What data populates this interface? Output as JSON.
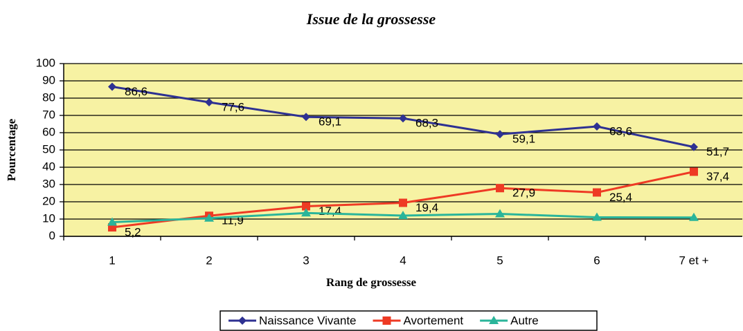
{
  "chart_data": {
    "type": "line",
    "title": "Issue de la grossesse",
    "x_label": "Rang de grossesse",
    "y_label": "Pourcentage",
    "categories": [
      "1",
      "2",
      "3",
      "4",
      "5",
      "6",
      "7 et +"
    ],
    "ylim": [
      0,
      100
    ],
    "yticks": [
      0,
      10,
      20,
      30,
      40,
      50,
      60,
      70,
      80,
      90,
      100
    ],
    "grid": true,
    "legend": "bottom",
    "series": [
      {
        "name": "Naissance Vivante",
        "color": "#2e3192",
        "marker": "diamond",
        "values": [
          86.6,
          77.6,
          69.1,
          68.3,
          59.1,
          63.6,
          51.7
        ],
        "value_labels": [
          "86,6",
          "77,6",
          "69,1",
          "68,3",
          "59,1",
          "63,6",
          "51,7"
        ]
      },
      {
        "name": "Avortement",
        "color": "#ee3a24",
        "marker": "square",
        "values": [
          5.2,
          11.9,
          17.4,
          19.4,
          27.9,
          25.4,
          37.4
        ],
        "value_labels": [
          "5,2",
          "11,9",
          "17,4",
          "19,4",
          "27,9",
          "25,4",
          "37,4"
        ]
      },
      {
        "name": "Autre",
        "color": "#2ab59a",
        "marker": "triangle",
        "values": [
          8.2,
          10.5,
          13.5,
          12.0,
          13.0,
          11.0,
          10.9
        ]
      }
    ]
  }
}
